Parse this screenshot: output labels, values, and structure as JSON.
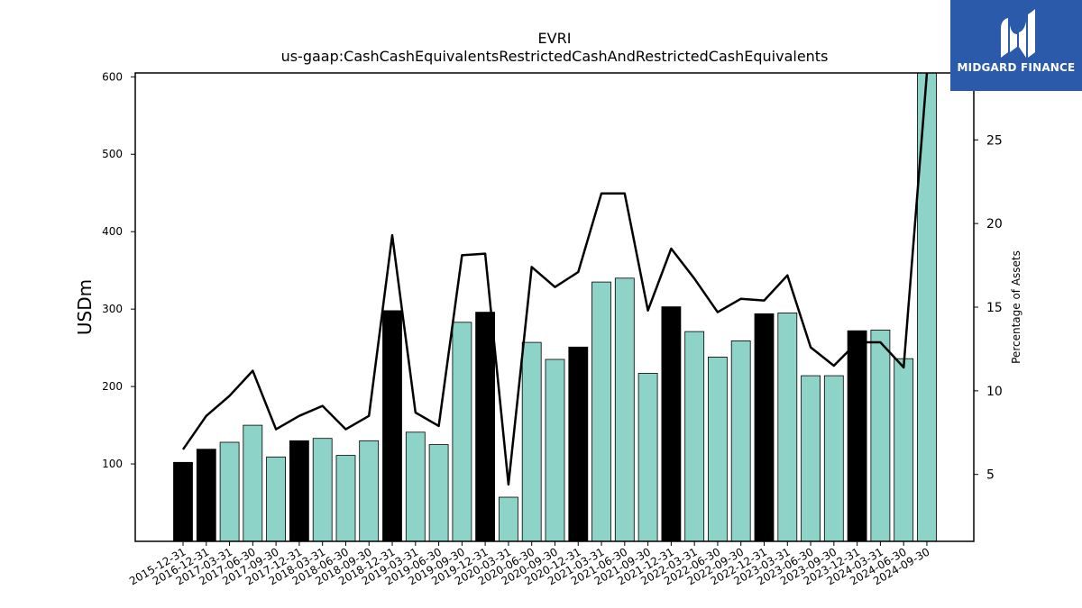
{
  "chart_data": {
    "type": "bar",
    "title": "EVRI",
    "subtitle": "us-gaap:CashCashEquivalentsRestrictedCashAndRestrictedCashEquivalents",
    "ylabel": "USDm",
    "y2label": "Percentage of Assets",
    "ylim": [
      0,
      605
    ],
    "y2lim": [
      1,
      29
    ],
    "yticks": [
      100,
      200,
      300,
      400,
      500,
      600
    ],
    "y2ticks": [
      5,
      10,
      15,
      20,
      25
    ],
    "categories": [
      "2015-12-31",
      "2016-12-31",
      "2017-03-31",
      "2017-06-30",
      "2017-09-30",
      "2017-12-31",
      "2018-03-31",
      "2018-06-30",
      "2018-09-30",
      "2018-12-31",
      "2019-03-31",
      "2019-06-30",
      "2019-09-30",
      "2019-12-31",
      "2020-03-31",
      "2020-06-30",
      "2020-09-30",
      "2020-12-31",
      "2021-03-31",
      "2021-06-30",
      "2021-09-30",
      "2021-12-31",
      "2022-03-31",
      "2022-06-30",
      "2022-09-30",
      "2022-12-31",
      "2023-03-31",
      "2023-06-30",
      "2023-09-30",
      "2023-12-31",
      "2024-03-31",
      "2024-06-30",
      "2024-09-30"
    ],
    "series": [
      {
        "type": "bar",
        "values": [
          102,
          119,
          128,
          150,
          109,
          130,
          133,
          111,
          130,
          298,
          141,
          125,
          283,
          296,
          57,
          257,
          235,
          251,
          335,
          340,
          217,
          303,
          271,
          238,
          259,
          294,
          295,
          214,
          214,
          272,
          273,
          236,
          605
        ],
        "year_end": [
          true,
          true,
          false,
          false,
          false,
          true,
          false,
          false,
          false,
          true,
          false,
          false,
          false,
          true,
          false,
          false,
          false,
          true,
          false,
          false,
          false,
          true,
          false,
          false,
          false,
          true,
          false,
          false,
          false,
          true,
          false,
          false,
          false
        ]
      },
      {
        "type": "line",
        "axis": "right",
        "values": [
          6.5,
          8.5,
          9.7,
          11.2,
          7.7,
          8.5,
          9.1,
          7.7,
          8.5,
          19.3,
          8.7,
          7.9,
          18.1,
          18.2,
          4.4,
          17.4,
          16.2,
          17.1,
          21.8,
          21.8,
          14.8,
          18.5,
          16.7,
          14.7,
          15.5,
          15.4,
          16.9,
          12.6,
          11.5,
          12.9,
          12.9,
          11.4,
          29.2
        ]
      }
    ],
    "colors": {
      "bar": "#8dd3c7",
      "bar_year_end": "#000000",
      "line": "#000000"
    },
    "grid": false
  },
  "logo": {
    "text": "MIDGARD FINANCE",
    "bg": "#2b5aab"
  }
}
